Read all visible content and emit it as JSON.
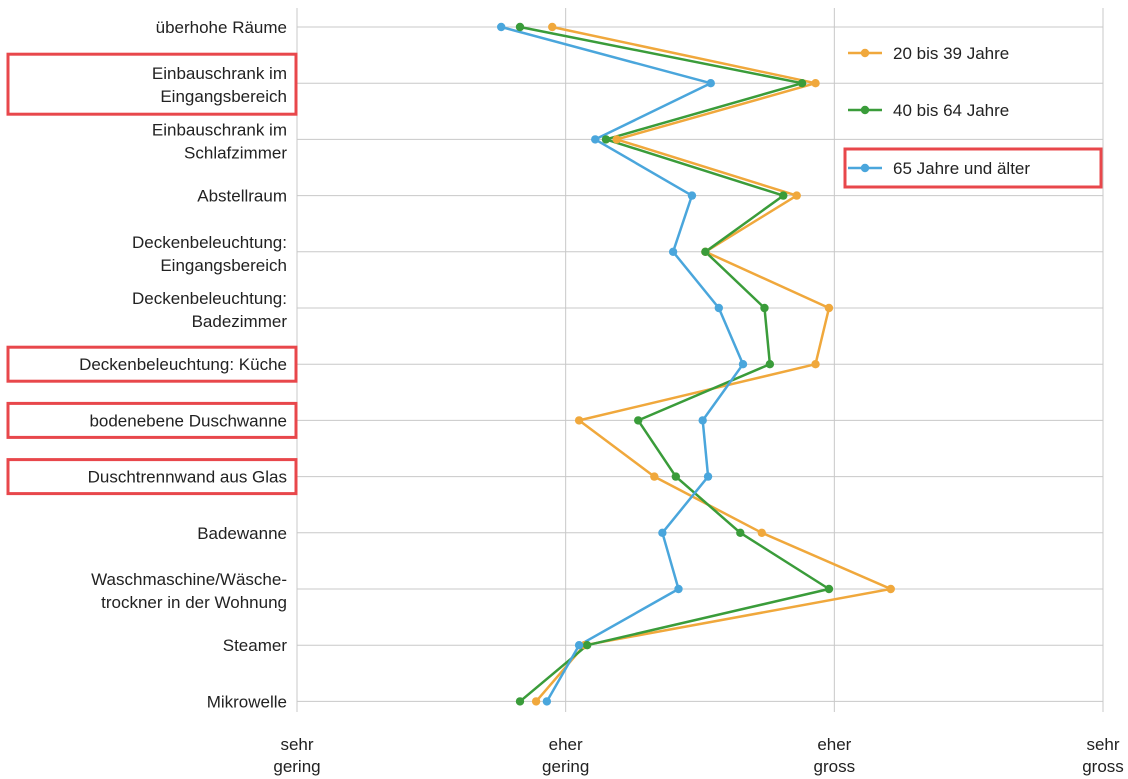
{
  "chart_data": {
    "type": "line",
    "orientation": "horizontal",
    "categories": [
      [
        "überhohe Räume"
      ],
      [
        "Einbauschrank im",
        "Eingangsbereich"
      ],
      [
        "Einbauschrank im",
        "Schlafzimmer"
      ],
      [
        "Abstellraum"
      ],
      [
        "Deckenbeleuchtung:",
        "Eingangsbereich"
      ],
      [
        "Deckenbeleuchtung:",
        "Badezimmer"
      ],
      [
        "Deckenbeleuchtung: Küche"
      ],
      [
        "bodenebene Duschwanne"
      ],
      [
        "Duschtrennwand aus Glas"
      ],
      [
        "Badewanne"
      ],
      [
        "Waschmaschine/Wäsche-",
        "trockner in der Wohnung"
      ],
      [
        "Steamer"
      ],
      [
        "Mikrowelle"
      ]
    ],
    "highlighted_categories": [
      1,
      6,
      7,
      8
    ],
    "x_ticks": [
      {
        "value": 1,
        "label": [
          "sehr",
          "gering"
        ]
      },
      {
        "value": 2,
        "label": [
          "eher",
          "gering"
        ]
      },
      {
        "value": 3,
        "label": [
          "eher",
          "gross"
        ]
      },
      {
        "value": 4,
        "label": [
          "sehr",
          "gross"
        ]
      }
    ],
    "xlim": [
      1,
      4
    ],
    "series": [
      {
        "name": "20 bis 39 Jahre",
        "color": "#f0a83c",
        "values": [
          1.95,
          2.93,
          2.19,
          2.86,
          2.52,
          2.98,
          2.93,
          2.05,
          2.33,
          2.73,
          3.21,
          2.07,
          1.89
        ]
      },
      {
        "name": "40 bis 64 Jahre",
        "color": "#3a9c3a",
        "values": [
          1.83,
          2.88,
          2.15,
          2.81,
          2.52,
          2.74,
          2.76,
          2.27,
          2.41,
          2.65,
          2.98,
          2.08,
          1.83
        ]
      },
      {
        "name": "65 Jahre und älter",
        "color": "#4aa6dc",
        "values": [
          1.76,
          2.54,
          2.11,
          2.47,
          2.4,
          2.57,
          2.66,
          2.51,
          2.53,
          2.36,
          2.42,
          2.05,
          1.93
        ]
      }
    ],
    "highlighted_series": [
      2
    ],
    "legend_position": "top-right",
    "grid": true
  }
}
